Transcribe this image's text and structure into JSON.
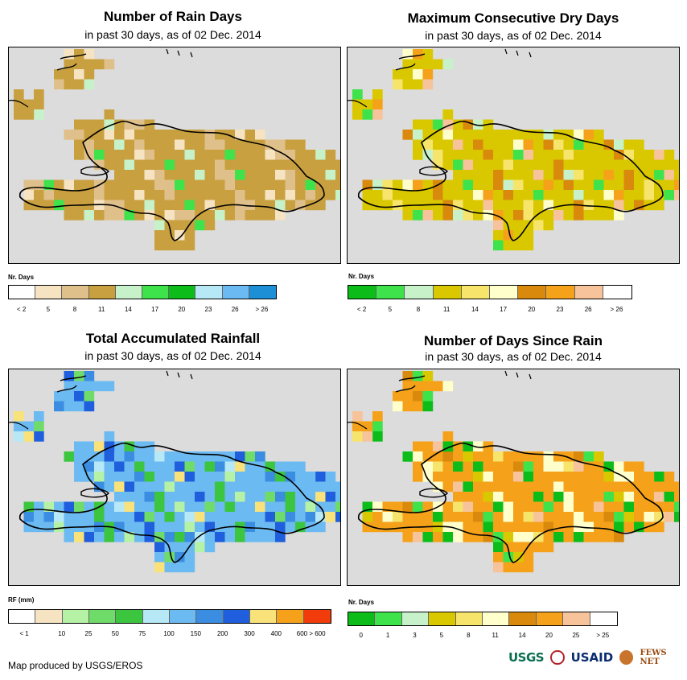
{
  "panels": [
    {
      "id": "rain-days",
      "title": "Number of Rain Days",
      "subtitle": "in past 30 days, as of 02 Dec. 2014",
      "legend_title": "Nr. Days",
      "legend_colors": [
        "#ffffff",
        "#f6e3c2",
        "#e0c08a",
        "#c9a040",
        "#c7f2c9",
        "#3ee24b",
        "#0cbd1a",
        "#b7e8f6",
        "#6cbaf2",
        "#1d8fd6"
      ],
      "tick_labels": [
        "< 2",
        "5",
        "8",
        "11",
        "14",
        "17",
        "20",
        "23",
        "26",
        "> 26"
      ],
      "tick_mode": "center",
      "background_color": "#c9a040",
      "cell_colors": [
        "#c9a040",
        "#e0c08a",
        "#f6e3c2",
        "#e0c08a",
        "#c9a040",
        "#c9a040",
        "#e0c08a",
        "#c9a040",
        "#f6e3c2",
        "#3ee24b",
        "#c7f2c9",
        "#e0c08a",
        "#c9a040"
      ]
    },
    {
      "id": "dry-days",
      "title": "Maximum Consecutive Dry Days",
      "subtitle": "in past 30 days, as of 02 Dec. 2014",
      "legend_title": "Nr. Days",
      "legend_colors": [
        "#0cbd1a",
        "#3ee24b",
        "#c7f2c9",
        "#d9c800",
        "#f7e46a",
        "#ffffcc",
        "#d98a0c",
        "#f5a21a",
        "#f7c39a",
        "#ffffff"
      ],
      "tick_labels": [
        "< 2",
        "5",
        "8",
        "11",
        "14",
        "17",
        "20",
        "23",
        "26",
        "> 26"
      ],
      "tick_mode": "center",
      "background_color": "#d9c800",
      "cell_colors": [
        "#d9c800",
        "#f7e46a",
        "#ffffcc",
        "#d98a0c",
        "#d9c800",
        "#f5a21a",
        "#c7f2c9",
        "#3ee24b",
        "#d9c800",
        "#f7e46a",
        "#f7c39a",
        "#d98a0c",
        "#d9c800"
      ]
    },
    {
      "id": "rainfall",
      "title": "Total Accumulated Rainfall",
      "subtitle": "in past 30 days, as of 02 Dec. 2014",
      "legend_title": "RF (mm)",
      "legend_colors": [
        "#ffffff",
        "#f6e3c2",
        "#b6f2a6",
        "#6fdc6a",
        "#3cc640",
        "#b7e8f6",
        "#6cbaf2",
        "#3a8de0",
        "#1f5edc",
        "#f9e27a",
        "#f5a21a",
        "#f23c0c"
      ],
      "tick_labels": [
        "< 1",
        "10",
        "25",
        "50",
        "75",
        "100",
        "150",
        "200",
        "300",
        "400",
        "600 > 600"
      ],
      "tick_mode": "edge",
      "background_color": "#6cbaf2",
      "cell_colors": [
        "#6cbaf2",
        "#3a8de0",
        "#1f5edc",
        "#3cc640",
        "#b7e8f6",
        "#6fdc6a",
        "#6cbaf2",
        "#f9e27a",
        "#3a8de0",
        "#b6f2a6",
        "#1f5edc",
        "#3cc640",
        "#6cbaf2"
      ]
    },
    {
      "id": "since-rain",
      "title": "Number of Days Since Rain",
      "subtitle": "in past 30 days, as of 02 Dec. 2014",
      "legend_title": "Nr. Days",
      "legend_colors": [
        "#0cbd1a",
        "#3ee24b",
        "#c7f2c9",
        "#d9c800",
        "#f7e46a",
        "#ffffcc",
        "#d98a0c",
        "#f5a21a",
        "#f7c39a",
        "#ffffff"
      ],
      "tick_labels": [
        "0",
        "1",
        "3",
        "5",
        "8",
        "11",
        "14",
        "20",
        "25",
        "> 25"
      ],
      "tick_mode": "center",
      "background_color": "#f5a21a",
      "cell_colors": [
        "#f5a21a",
        "#ffffcc",
        "#d98a0c",
        "#0cbd1a",
        "#f7e46a",
        "#3ee24b",
        "#ffffcc",
        "#f7c39a",
        "#d9c800",
        "#f5a21a",
        "#0cbd1a",
        "#ffffcc",
        "#f5a21a"
      ]
    }
  ],
  "footer": "Map produced by USGS/EROS",
  "logos": {
    "usgs": "USGS",
    "usaid": "USAID",
    "fews": "FEWS NET"
  }
}
